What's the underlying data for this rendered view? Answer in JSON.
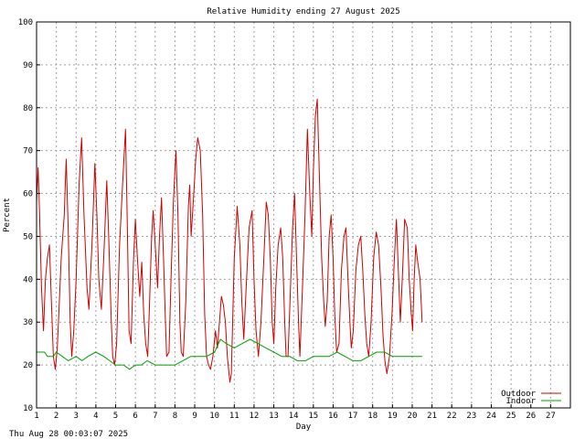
{
  "chart_data": {
    "type": "line",
    "title": "Relative Humidity ending 27 August 2025",
    "xlabel": "Day",
    "ylabel": "Percent",
    "xlim": [
      1,
      28
    ],
    "ylim": [
      10,
      100
    ],
    "x_ticks": [
      "1",
      "2",
      "3",
      "4",
      "5",
      "6",
      "7",
      "8",
      "9",
      "10",
      "11",
      "12",
      "13",
      "14",
      "15",
      "16",
      "17",
      "18",
      "19",
      "20",
      "21",
      "22",
      "23",
      "24",
      "25",
      "26",
      "27"
    ],
    "y_ticks": [
      10,
      20,
      30,
      40,
      50,
      60,
      70,
      80,
      90,
      100
    ],
    "grid": true,
    "legend_position": "bottom-right",
    "series": [
      {
        "name": "Outdoor",
        "color": "#d00000",
        "points": [
          [
            1.0,
            58
          ],
          [
            1.08,
            66
          ],
          [
            1.15,
            56
          ],
          [
            1.25,
            38
          ],
          [
            1.35,
            28
          ],
          [
            1.45,
            40
          ],
          [
            1.55,
            45
          ],
          [
            1.65,
            48
          ],
          [
            1.75,
            35
          ],
          [
            1.85,
            22
          ],
          [
            1.95,
            19
          ],
          [
            2.05,
            24
          ],
          [
            2.25,
            45
          ],
          [
            2.4,
            55
          ],
          [
            2.5,
            68
          ],
          [
            2.6,
            52
          ],
          [
            2.7,
            30
          ],
          [
            2.78,
            22
          ],
          [
            2.88,
            28
          ],
          [
            3.0,
            40
          ],
          [
            3.15,
            62
          ],
          [
            3.28,
            73
          ],
          [
            3.4,
            55
          ],
          [
            3.55,
            38
          ],
          [
            3.65,
            33
          ],
          [
            3.8,
            48
          ],
          [
            3.95,
            67
          ],
          [
            4.05,
            55
          ],
          [
            4.15,
            40
          ],
          [
            4.28,
            33
          ],
          [
            4.4,
            45
          ],
          [
            4.55,
            63
          ],
          [
            4.65,
            50
          ],
          [
            4.78,
            30
          ],
          [
            4.85,
            22
          ],
          [
            4.95,
            20
          ],
          [
            5.05,
            25
          ],
          [
            5.2,
            48
          ],
          [
            5.35,
            62
          ],
          [
            5.5,
            75
          ],
          [
            5.58,
            55
          ],
          [
            5.68,
            28
          ],
          [
            5.78,
            25
          ],
          [
            5.9,
            44
          ],
          [
            6.0,
            54
          ],
          [
            6.1,
            45
          ],
          [
            6.22,
            36
          ],
          [
            6.32,
            44
          ],
          [
            6.42,
            32
          ],
          [
            6.52,
            25
          ],
          [
            6.62,
            22
          ],
          [
            6.72,
            35
          ],
          [
            6.82,
            50
          ],
          [
            6.9,
            56
          ],
          [
            7.0,
            48
          ],
          [
            7.12,
            38
          ],
          [
            7.22,
            50
          ],
          [
            7.32,
            59
          ],
          [
            7.42,
            45
          ],
          [
            7.52,
            30
          ],
          [
            7.58,
            22
          ],
          [
            7.7,
            23
          ],
          [
            7.8,
            40
          ],
          [
            7.92,
            58
          ],
          [
            8.05,
            70
          ],
          [
            8.15,
            55
          ],
          [
            8.25,
            30
          ],
          [
            8.32,
            23
          ],
          [
            8.42,
            22
          ],
          [
            8.55,
            35
          ],
          [
            8.68,
            57
          ],
          [
            8.75,
            62
          ],
          [
            8.82,
            50
          ],
          [
            8.95,
            60
          ],
          [
            9.05,
            68
          ],
          [
            9.15,
            73
          ],
          [
            9.28,
            70
          ],
          [
            9.4,
            55
          ],
          [
            9.5,
            32
          ],
          [
            9.6,
            22
          ],
          [
            9.7,
            20
          ],
          [
            9.8,
            19
          ],
          [
            9.92,
            22
          ],
          [
            10.05,
            28
          ],
          [
            10.15,
            24
          ],
          [
            10.25,
            30
          ],
          [
            10.35,
            36
          ],
          [
            10.45,
            34
          ],
          [
            10.55,
            30
          ],
          [
            10.65,
            22
          ],
          [
            10.78,
            16
          ],
          [
            10.85,
            18
          ],
          [
            11.0,
            45
          ],
          [
            11.15,
            57
          ],
          [
            11.28,
            48
          ],
          [
            11.38,
            35
          ],
          [
            11.48,
            26
          ],
          [
            11.6,
            38
          ],
          [
            11.75,
            52
          ],
          [
            11.9,
            56
          ],
          [
            12.0,
            40
          ],
          [
            12.1,
            28
          ],
          [
            12.22,
            22
          ],
          [
            12.35,
            30
          ],
          [
            12.5,
            45
          ],
          [
            12.62,
            58
          ],
          [
            12.72,
            55
          ],
          [
            12.82,
            45
          ],
          [
            12.92,
            30
          ],
          [
            13.0,
            25
          ],
          [
            13.1,
            38
          ],
          [
            13.22,
            48
          ],
          [
            13.35,
            52
          ],
          [
            13.45,
            45
          ],
          [
            13.55,
            30
          ],
          [
            13.62,
            22
          ],
          [
            13.72,
            22
          ],
          [
            13.82,
            35
          ],
          [
            13.95,
            52
          ],
          [
            14.05,
            60
          ],
          [
            14.15,
            45
          ],
          [
            14.25,
            30
          ],
          [
            14.32,
            22
          ],
          [
            14.45,
            38
          ],
          [
            14.58,
            55
          ],
          [
            14.7,
            75
          ],
          [
            14.82,
            60
          ],
          [
            14.92,
            50
          ],
          [
            15.0,
            65
          ],
          [
            15.1,
            78
          ],
          [
            15.2,
            82
          ],
          [
            15.3,
            65
          ],
          [
            15.42,
            45
          ],
          [
            15.52,
            35
          ],
          [
            15.6,
            29
          ],
          [
            15.7,
            35
          ],
          [
            15.8,
            50
          ],
          [
            15.9,
            55
          ],
          [
            16.0,
            45
          ],
          [
            16.08,
            32
          ],
          [
            16.18,
            23
          ],
          [
            16.3,
            25
          ],
          [
            16.42,
            42
          ],
          [
            16.55,
            50
          ],
          [
            16.65,
            52
          ],
          [
            16.75,
            40
          ],
          [
            16.85,
            30
          ],
          [
            16.92,
            24
          ],
          [
            17.02,
            28
          ],
          [
            17.15,
            42
          ],
          [
            17.28,
            48
          ],
          [
            17.4,
            50
          ],
          [
            17.5,
            42
          ],
          [
            17.6,
            32
          ],
          [
            17.7,
            25
          ],
          [
            17.8,
            22
          ],
          [
            17.92,
            30
          ],
          [
            18.05,
            45
          ],
          [
            18.18,
            51
          ],
          [
            18.3,
            48
          ],
          [
            18.42,
            38
          ],
          [
            18.52,
            27
          ],
          [
            18.62,
            21
          ],
          [
            18.72,
            18
          ],
          [
            18.85,
            22
          ],
          [
            18.98,
            32
          ],
          [
            19.1,
            45
          ],
          [
            19.2,
            54
          ],
          [
            19.3,
            42
          ],
          [
            19.4,
            30
          ],
          [
            19.5,
            40
          ],
          [
            19.62,
            54
          ],
          [
            19.75,
            52
          ],
          [
            19.85,
            40
          ],
          [
            19.95,
            32
          ],
          [
            20.02,
            28
          ],
          [
            20.1,
            40
          ],
          [
            20.18,
            48
          ],
          [
            20.25,
            45
          ],
          [
            20.4,
            40
          ],
          [
            20.5,
            30
          ]
        ]
      },
      {
        "name": "Indoor",
        "color": "#00a000",
        "points": [
          [
            1.0,
            23
          ],
          [
            1.4,
            23
          ],
          [
            1.55,
            22
          ],
          [
            1.85,
            22
          ],
          [
            2.0,
            23
          ],
          [
            2.3,
            22
          ],
          [
            2.6,
            21
          ],
          [
            3.0,
            22
          ],
          [
            3.3,
            21
          ],
          [
            3.6,
            22
          ],
          [
            4.0,
            23
          ],
          [
            4.4,
            22
          ],
          [
            4.7,
            21
          ],
          [
            5.0,
            20
          ],
          [
            5.4,
            20
          ],
          [
            5.7,
            19
          ],
          [
            6.0,
            20
          ],
          [
            6.3,
            20
          ],
          [
            6.6,
            21
          ],
          [
            7.0,
            20
          ],
          [
            7.5,
            20
          ],
          [
            8.0,
            20
          ],
          [
            8.4,
            21
          ],
          [
            8.8,
            22
          ],
          [
            9.2,
            22
          ],
          [
            9.6,
            22
          ],
          [
            10.0,
            23
          ],
          [
            10.3,
            26
          ],
          [
            10.6,
            25
          ],
          [
            11.0,
            24
          ],
          [
            11.4,
            25
          ],
          [
            11.8,
            26
          ],
          [
            12.2,
            25
          ],
          [
            12.6,
            24
          ],
          [
            13.0,
            23
          ],
          [
            13.4,
            22
          ],
          [
            13.8,
            22
          ],
          [
            14.2,
            21
          ],
          [
            14.6,
            21
          ],
          [
            15.0,
            22
          ],
          [
            15.4,
            22
          ],
          [
            15.8,
            22
          ],
          [
            16.2,
            23
          ],
          [
            16.6,
            22
          ],
          [
            17.0,
            21
          ],
          [
            17.4,
            21
          ],
          [
            17.8,
            22
          ],
          [
            18.2,
            23
          ],
          [
            18.6,
            23
          ],
          [
            19.0,
            22
          ],
          [
            19.4,
            22
          ],
          [
            19.8,
            22
          ],
          [
            20.2,
            22
          ],
          [
            20.5,
            22
          ]
        ]
      }
    ]
  },
  "footer": {
    "timestamp": "Thu Aug 28 00:03:07 2025"
  }
}
